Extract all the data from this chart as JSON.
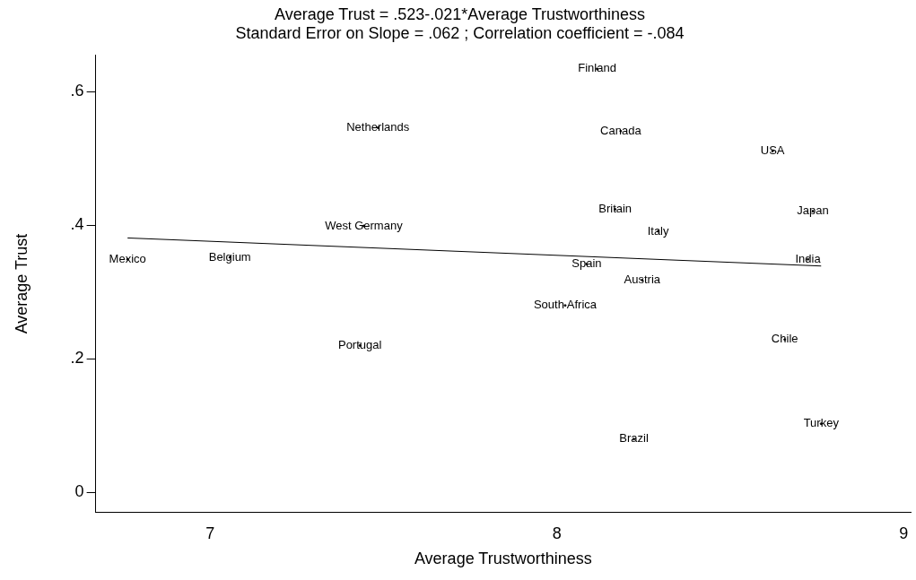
{
  "chart_data": {
    "type": "scatter",
    "title": "Average Trust = .523-.021*Average Trustworthiness",
    "subtitle": "Standard Error on Slope = .062 ; Correlation coefficient = -.084",
    "xlabel": "Average Trustworthiness",
    "ylabel": "Average Trust",
    "xlim": [
      6.67,
      9.02
    ],
    "xticks": [
      7,
      8,
      9
    ],
    "ylim": [
      -0.03,
      0.655
    ],
    "yticks": [
      {
        "value": 0,
        "label": "0"
      },
      {
        "value": 0.2,
        "label": ".2"
      },
      {
        "value": 0.4,
        "label": ".4"
      },
      {
        "value": 0.6,
        "label": ".6"
      }
    ],
    "grid": false,
    "legend": false,
    "series": [
      {
        "type": "scatter",
        "color": "#000000",
        "x": [
          8.116,
          7.484,
          8.184,
          8.622,
          8.168,
          8.738,
          7.443,
          8.292,
          6.762,
          7.057,
          8.724,
          8.086,
          8.246,
          8.024,
          7.432,
          8.657,
          8.762,
          8.222
        ],
        "values": [
          0.634,
          0.546,
          0.541,
          0.511,
          0.424,
          0.421,
          0.399,
          0.391,
          0.349,
          0.352,
          0.349,
          0.342,
          0.318,
          0.28,
          0.22,
          0.229,
          0.103,
          0.08
        ],
        "value_labels": [
          "Finland",
          "Netherlands",
          "Canada",
          "USA",
          "Britain",
          "Japan",
          "West Germany",
          "Italy",
          "Mexico",
          "Belgium",
          "India",
          "Spain",
          "Austria",
          "South Africa",
          "Portugal",
          "Chile",
          "Turkey",
          "Brazil"
        ]
      },
      {
        "type": "line",
        "color": "#000000",
        "x": [
          6.762,
          8.762
        ],
        "values": [
          0.381,
          0.339
        ]
      }
    ]
  }
}
